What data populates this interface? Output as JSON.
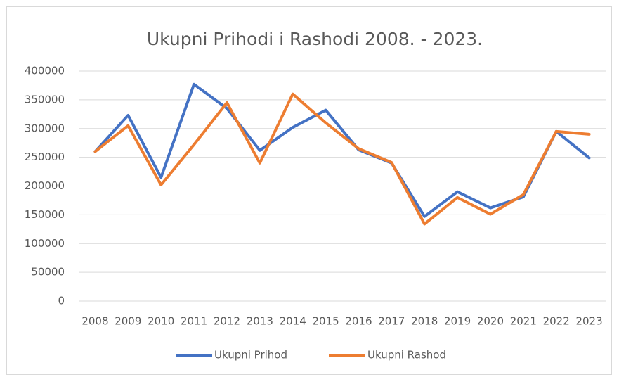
{
  "chart_data": {
    "type": "line",
    "title": "Ukupni Prihodi i Rashodi 2008. - 2023.",
    "categories": [
      "2008",
      "2009",
      "2010",
      "2011",
      "2012",
      "2013",
      "2014",
      "2015",
      "2016",
      "2017",
      "2018",
      "2019",
      "2020",
      "2021",
      "2022",
      "2023"
    ],
    "series": [
      {
        "name": "Ukupni Prihod",
        "color": "#4472c4",
        "values": [
          260000,
          323000,
          215000,
          377000,
          335000,
          262000,
          302000,
          332000,
          263000,
          240000,
          147000,
          190000,
          162000,
          181000,
          295000,
          249000
        ]
      },
      {
        "name": "Ukupni Rashod",
        "color": "#ed7d31",
        "values": [
          260000,
          305000,
          202000,
          272000,
          345000,
          240000,
          360000,
          310000,
          265000,
          241000,
          134000,
          180000,
          151000,
          185000,
          295000,
          290000
        ]
      }
    ],
    "ylim": [
      0,
      400000
    ],
    "yticks": [
      0,
      50000,
      100000,
      150000,
      200000,
      250000,
      300000,
      350000,
      400000
    ],
    "grid": true,
    "legend": "bottom"
  }
}
